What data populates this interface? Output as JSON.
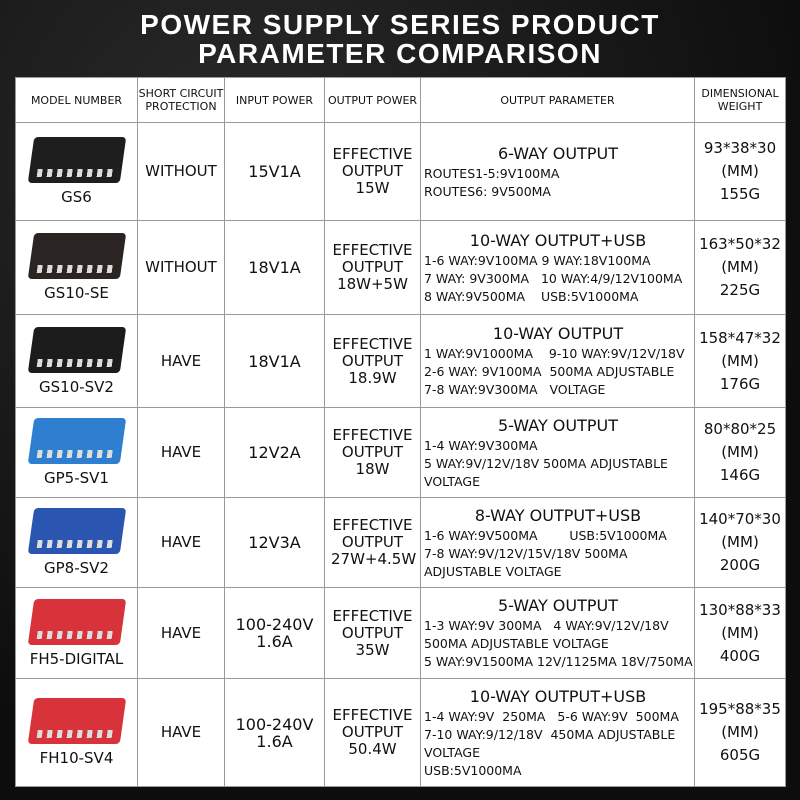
{
  "title": [
    "POWER SUPPLY SERIES PRODUCT",
    "PARAMETER COMPARISON"
  ],
  "headers": [
    "MODEL NUMBER",
    "SHORT CIRCUIT PROTECTION",
    "INPUT POWER",
    "OUTPUT POWER",
    "OUTPUT PARAMETER",
    "DIMENSIONAL WEIGHT"
  ],
  "rows": [
    {
      "model": "GS6",
      "color": "#1e1e1e",
      "protection": "WITHOUT",
      "input": "15V1A",
      "output": "EFFECTIVE OUTPUT 15W",
      "param_title": "6-WAY OUTPUT",
      "param_lines": [
        "ROUTES1-5:9V100MA",
        "ROUTES6: 9V500MA"
      ],
      "dims": "93*38*30",
      "unit": "(MM)",
      "weight": "155G"
    },
    {
      "model": "GS10-SE",
      "color": "#2a2522",
      "protection": "WITHOUT",
      "input": "18V1A",
      "output": "EFFECTIVE OUTPUT 18W+5W",
      "param_title": "10-WAY OUTPUT+USB",
      "param_lines": [
        "1-6 WAY:9V100MA 9 WAY:18V100MA",
        "7 WAY: 9V300MA   10 WAY:4/9/12V100MA",
        "8 WAY:9V500MA    USB:5V1000MA"
      ],
      "dims": "163*50*32",
      "unit": "(MM)",
      "weight": "225G"
    },
    {
      "model": "GS10-SV2",
      "color": "#1c1c1c",
      "protection": "HAVE",
      "input": "18V1A",
      "output": "EFFECTIVE OUTPUT 18.9W",
      "param_title": "10-WAY OUTPUT",
      "param_lines": [
        "1 WAY:9V1000MA    9-10 WAY:9V/12V/18V",
        "2-6 WAY: 9V100MA  500MA ADJUSTABLE",
        "7-8 WAY:9V300MA   VOLTAGE"
      ],
      "dims": "158*47*32",
      "unit": "(MM)",
      "weight": "176G"
    },
    {
      "model": "GP5-SV1",
      "color": "#2f7fd0",
      "protection": "HAVE",
      "input": "12V2A",
      "output": "EFFECTIVE OUTPUT 18W",
      "param_title": "5-WAY OUTPUT",
      "param_lines": [
        "1-4 WAY:9V300MA",
        "5 WAY:9V/12V/18V 500MA ADJUSTABLE",
        "VOLTAGE"
      ],
      "dims": "80*80*25",
      "unit": "(MM)",
      "weight": "146G"
    },
    {
      "model": "GP8-SV2",
      "color": "#2a55b0",
      "protection": "HAVE",
      "input": "12V3A",
      "output": "EFFECTIVE OUTPUT 27W+4.5W",
      "param_title": "8-WAY OUTPUT+USB",
      "param_lines": [
        "1-6 WAY:9V500MA        USB:5V1000MA",
        "7-8 WAY:9V/12V/15V/18V 500MA",
        "ADJUSTABLE VOLTAGE"
      ],
      "dims": "140*70*30",
      "unit": "(MM)",
      "weight": "200G"
    },
    {
      "model": "FH5-DIGITAL",
      "color": "#d8333a",
      "protection": "HAVE",
      "input": "100-240V 1.6A",
      "output": "EFFECTIVE OUTPUT 35W",
      "param_title": "5-WAY OUTPUT",
      "param_lines": [
        "1-3 WAY:9V 300MA   4 WAY:9V/12V/18V",
        "500MA ADJUSTABLE VOLTAGE",
        "5 WAY:9V1500MA 12V/1125MA 18V/750MA"
      ],
      "dims": "130*88*33",
      "unit": "(MM)",
      "weight": "400G"
    },
    {
      "model": "FH10-SV4",
      "color": "#d8333a",
      "protection": "HAVE",
      "input": "100-240V 1.6A",
      "output": "EFFECTIVE OUTPUT 50.4W",
      "param_title": "10-WAY OUTPUT+USB",
      "param_lines": [
        "1-4 WAY:9V  250MA   5-6 WAY:9V  500MA",
        "7-10 WAY:9/12/18V  450MA ADJUSTABLE",
        "VOLTAGE",
        "USB:5V1000MA"
      ],
      "dims": "195*88*35",
      "unit": "(MM)",
      "weight": "605G"
    }
  ]
}
